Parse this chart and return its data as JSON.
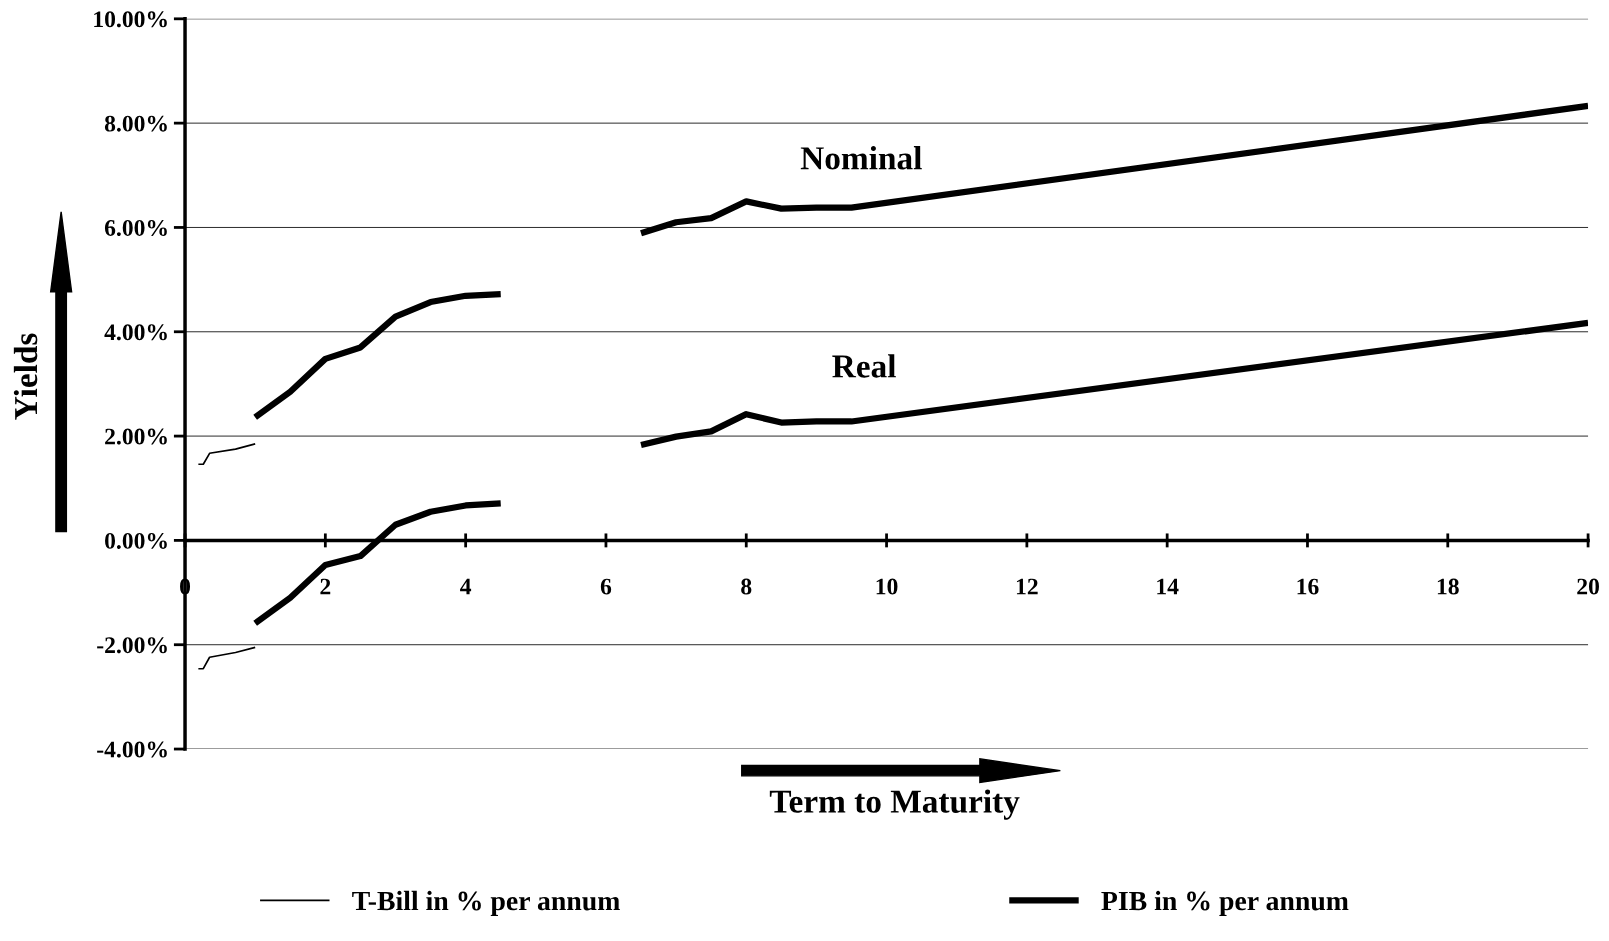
{
  "chart_data": {
    "type": "line",
    "xlabel": "Term to Maturity",
    "ylabel": "Yields",
    "xlim": [
      0,
      20
    ],
    "xticks": [
      0,
      2,
      4,
      6,
      8,
      10,
      12,
      14,
      16,
      18,
      20
    ],
    "ylim": [
      -4,
      10
    ],
    "yticks": [
      {
        "value": -4,
        "label": "-4.00%"
      },
      {
        "value": -2,
        "label": "-2.00%"
      },
      {
        "value": 0,
        "label": "0.00%"
      },
      {
        "value": 2,
        "label": "2.00%"
      },
      {
        "value": 4,
        "label": "4.00%"
      },
      {
        "value": 6,
        "label": "6.00%"
      },
      {
        "value": 8,
        "label": "8.00%"
      },
      {
        "value": 10,
        "label": "10.00%"
      }
    ],
    "grid": "y",
    "legend": "bottom",
    "marker": "none",
    "line_style": "solid",
    "series": [
      {
        "name": "T-Bill in % per annum",
        "color": "#000000",
        "x": [
          0.19,
          0.26,
          0.35,
          0.72,
          1.0
        ],
        "values": [
          1.46,
          1.46,
          1.67,
          1.75,
          1.85
        ]
      },
      {
        "color": "#000000",
        "x": [
          0.19,
          0.26,
          0.35,
          0.72,
          1.0
        ],
        "values": [
          -2.46,
          -2.46,
          -2.24,
          -2.15,
          -2.05
        ]
      },
      {
        "name": "PIB in % per annum",
        "color": "#000000",
        "x": [
          1.0,
          1.5,
          2.0,
          2.5,
          3.0,
          3.5,
          4.0,
          4.5,
          5.5,
          6.5,
          7.0,
          7.5,
          8.0,
          8.5,
          9.0,
          9.5,
          20
        ],
        "values": [
          2.36,
          2.85,
          3.48,
          3.7,
          4.29,
          4.57,
          4.69,
          4.72,
          null,
          5.89,
          6.1,
          6.18,
          6.5,
          6.36,
          6.38,
          6.38,
          8.33
        ]
      },
      {
        "color": "#000000",
        "x": [
          1.0,
          1.5,
          2.0,
          2.5,
          3.0,
          3.5,
          4.0,
          4.5,
          5.5,
          6.5,
          7.0,
          7.5,
          8.0,
          8.5,
          9.0,
          9.5,
          20
        ],
        "values": [
          -1.59,
          -1.1,
          -0.47,
          -0.3,
          0.3,
          0.55,
          0.67,
          0.71,
          null,
          1.83,
          1.99,
          2.09,
          2.42,
          2.26,
          2.28,
          2.28,
          4.17
        ]
      }
    ],
    "annotations": [
      "Nominal",
      "Real"
    ]
  }
}
